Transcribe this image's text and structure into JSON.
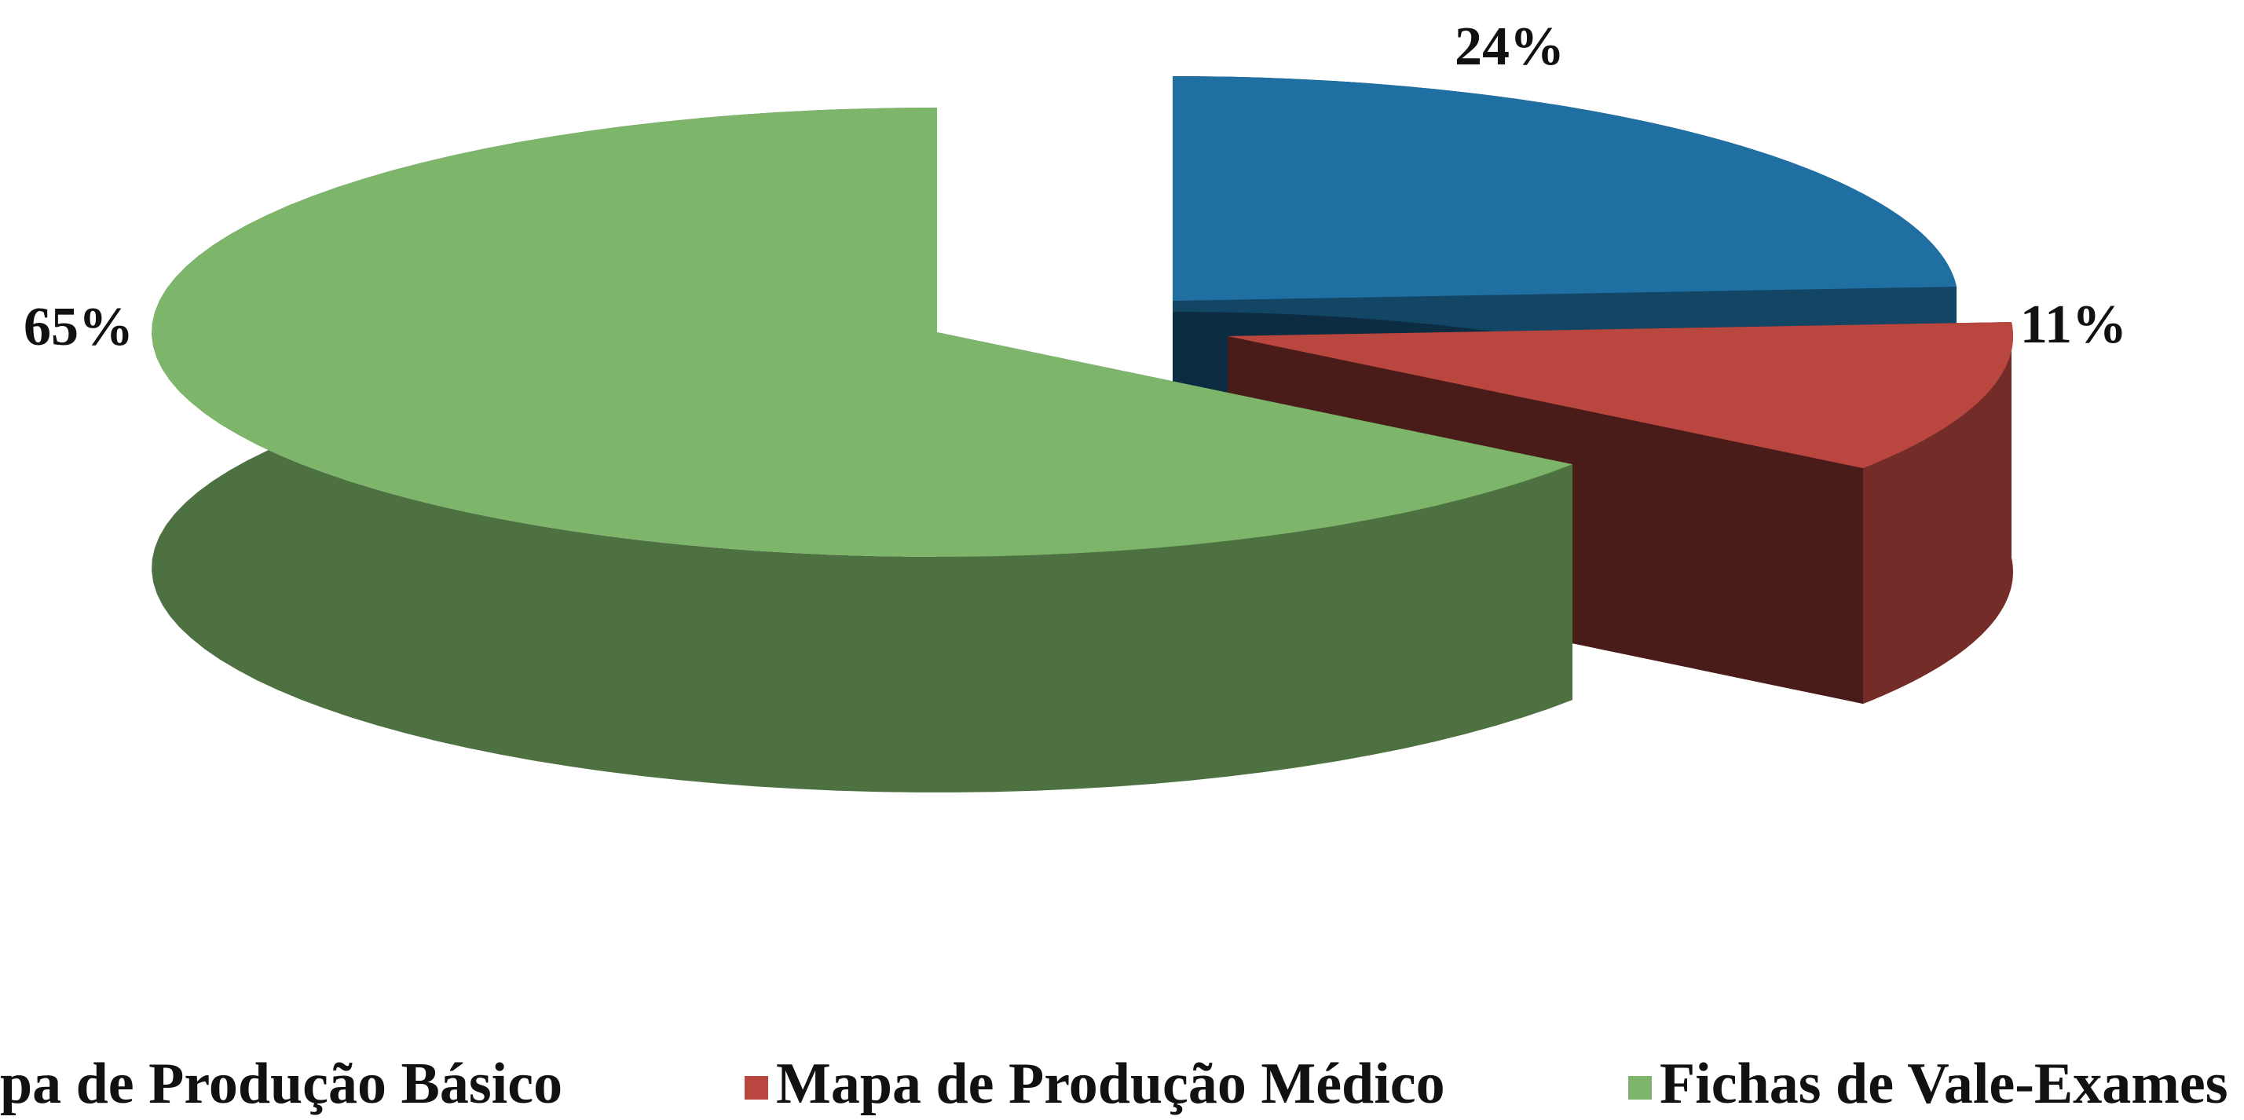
{
  "chart_data": {
    "type": "pie",
    "categories": [
      "pa de Produção Básico",
      "Mapa de Produção Médico",
      "Fichas de Vale-Exames"
    ],
    "values": [
      24,
      11,
      65
    ],
    "value_labels": [
      "24%",
      "11%",
      "65%"
    ],
    "colors": [
      "#1f6fa3",
      "#b9473f",
      "#7db66b"
    ],
    "legend": "bottom"
  }
}
